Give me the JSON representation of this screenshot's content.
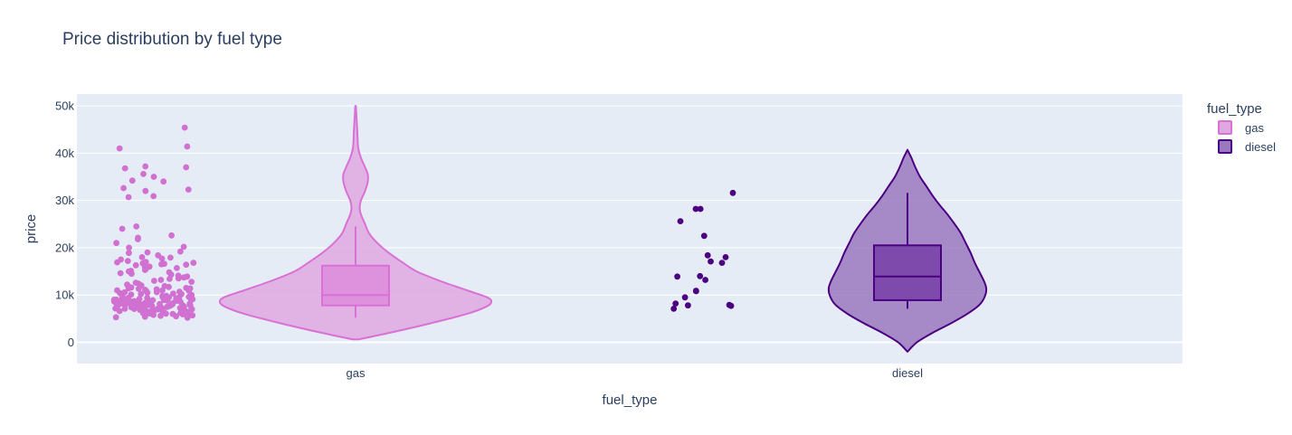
{
  "chart_data": {
    "type": "violin",
    "title": "Price distribution by fuel type",
    "xlabel": "fuel_type",
    "ylabel": "price",
    "categories": [
      "gas",
      "diesel"
    ],
    "y_ticks": [
      0,
      10000,
      20000,
      30000,
      40000,
      50000
    ],
    "y_tick_labels": [
      "0",
      "10k",
      "20k",
      "30k",
      "40k",
      "50k"
    ],
    "ylim": [
      -4500,
      52500
    ],
    "grid": true,
    "legend": {
      "title": "fuel_type",
      "placement": "right",
      "entries": [
        "gas",
        "diesel"
      ]
    },
    "colors": {
      "gas_line": "#da70d6",
      "gas_fill": "#e0a8e0",
      "gas_box": "#dd8cdd",
      "gas_points": "#d070d0",
      "diesel_line": "#4b0082",
      "diesel_fill": "#9b79be",
      "diesel_box": "#7740a8",
      "diesel_points": "#4b0082",
      "plot_bg": "#e5ecf6"
    },
    "series": [
      {
        "name": "gas",
        "box": {
          "lowerfence": 5200,
          "q1": 7800,
          "median": 10000,
          "q3": 16200,
          "upperfence": 24500
        },
        "violin_range": [
          600,
          50000
        ],
        "density": [
          [
            600,
            0.02
          ],
          [
            2000,
            0.25
          ],
          [
            4000,
            0.55
          ],
          [
            6000,
            0.82
          ],
          [
            7500,
            0.96
          ],
          [
            8500,
            1.0
          ],
          [
            9500,
            0.97
          ],
          [
            11000,
            0.82
          ],
          [
            13000,
            0.62
          ],
          [
            15000,
            0.45
          ],
          [
            17000,
            0.34
          ],
          [
            19000,
            0.24
          ],
          [
            21000,
            0.16
          ],
          [
            23000,
            0.1
          ],
          [
            25000,
            0.07
          ],
          [
            27000,
            0.04
          ],
          [
            28500,
            0.03
          ],
          [
            30000,
            0.04
          ],
          [
            32000,
            0.07
          ],
          [
            34000,
            0.09
          ],
          [
            35500,
            0.09
          ],
          [
            37000,
            0.07
          ],
          [
            39000,
            0.04
          ],
          [
            41000,
            0.02
          ],
          [
            43000,
            0.015
          ],
          [
            45000,
            0.012
          ],
          [
            47000,
            0.008
          ],
          [
            49000,
            0.004
          ],
          [
            50000,
            0.002
          ]
        ],
        "points": [
          45400,
          41400,
          41000,
          37200,
          37000,
          36800,
          35600,
          35000,
          34000,
          34200,
          32600,
          32300,
          32000,
          30700,
          30900,
          24500,
          24000,
          22600,
          22100,
          21800,
          21000,
          20200,
          20000,
          19200,
          19000,
          18900,
          18400,
          18000,
          17900,
          17700,
          17500,
          17200,
          17000,
          16900,
          16800,
          16700,
          16600,
          16500,
          16400,
          16300,
          16100,
          16000,
          15900,
          15700,
          15500,
          15300,
          15100,
          15000,
          14800,
          14600,
          14500,
          14300,
          14100,
          13900,
          13700,
          13500,
          13400,
          13200,
          13000,
          12800,
          12600,
          12400,
          12200,
          12000,
          11900,
          11700,
          11600,
          11500,
          11400,
          11300,
          11200,
          11100,
          11000,
          10900,
          10800,
          10700,
          10600,
          10500,
          10400,
          10300,
          10200,
          10100,
          10000,
          9900,
          9800,
          9700,
          9600,
          9500,
          9400,
          9300,
          9200,
          9100,
          9000,
          8950,
          8900,
          8850,
          8800,
          8750,
          8700,
          8650,
          8600,
          8550,
          8500,
          8450,
          8400,
          8350,
          8300,
          8250,
          8200,
          8150,
          8100,
          8050,
          8000,
          7950,
          7900,
          7850,
          7800,
          7750,
          7700,
          7650,
          7600,
          7550,
          7500,
          7450,
          7400,
          7350,
          7300,
          7250,
          7200,
          7150,
          7100,
          7050,
          7000,
          6950,
          6900,
          6850,
          6800,
          6750,
          6700,
          6650,
          6600,
          6550,
          6500,
          6450,
          6400,
          6350,
          6300,
          6250,
          6200,
          6150,
          6100,
          6050,
          6000,
          5900,
          5800,
          5700,
          5600,
          5500,
          5400,
          5300,
          5200,
          6700,
          7100,
          7400,
          7700,
          8000,
          8200,
          8400,
          8600,
          8800,
          9000,
          9200,
          9400,
          9600,
          9800,
          9300,
          8900,
          8500,
          8100,
          7700,
          7300,
          6900,
          6500,
          6100,
          5700,
          10200,
          10600,
          11000,
          11400,
          9500,
          8700,
          7900,
          7100
        ]
      },
      {
        "name": "diesel",
        "box": {
          "lowerfence": 7100,
          "q1": 8900,
          "median": 13900,
          "q3": 20500,
          "upperfence": 31600
        },
        "violin_range": [
          -2000,
          40700
        ],
        "density": [
          [
            -2000,
            0.0
          ],
          [
            0,
            0.12
          ],
          [
            2000,
            0.32
          ],
          [
            4000,
            0.55
          ],
          [
            6000,
            0.76
          ],
          [
            8000,
            0.92
          ],
          [
            10000,
            0.99
          ],
          [
            11500,
            1.0
          ],
          [
            13000,
            0.97
          ],
          [
            15000,
            0.91
          ],
          [
            17000,
            0.85
          ],
          [
            19000,
            0.8
          ],
          [
            21000,
            0.74
          ],
          [
            23000,
            0.68
          ],
          [
            25000,
            0.6
          ],
          [
            27000,
            0.51
          ],
          [
            29000,
            0.41
          ],
          [
            31000,
            0.32
          ],
          [
            33000,
            0.24
          ],
          [
            35000,
            0.16
          ],
          [
            37000,
            0.1
          ],
          [
            39000,
            0.05
          ],
          [
            40700,
            0.0
          ]
        ],
        "points": [
          31600,
          28200,
          28200,
          25600,
          22500,
          18400,
          18000,
          17100,
          16800,
          14000,
          13900,
          13200,
          10900,
          10800,
          9500,
          8200,
          7900,
          7800,
          7700,
          7100
        ]
      }
    ]
  }
}
